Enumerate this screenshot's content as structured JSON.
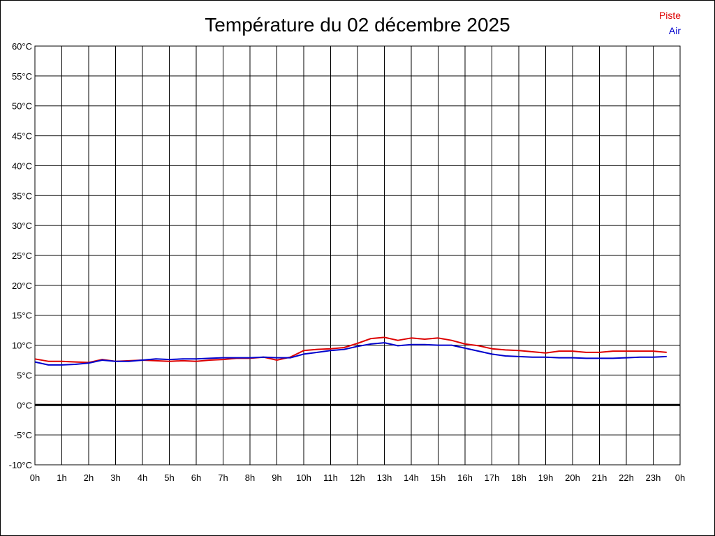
{
  "chart_data": {
    "type": "line",
    "title": "Température du 02 décembre 2025",
    "ylim": [
      -10,
      60
    ],
    "xlim": [
      0,
      24
    ],
    "y_ticks": [
      60,
      55,
      50,
      45,
      40,
      35,
      30,
      25,
      20,
      15,
      10,
      5,
      0,
      -5,
      -10
    ],
    "y_tick_labels": [
      "60°C",
      "55°C",
      "50°C",
      "45°C",
      "40°C",
      "35°C",
      "30°C",
      "25°C",
      "20°C",
      "15°C",
      "10°C",
      "5°C",
      "0°C",
      "-5°C",
      "-10°C"
    ],
    "x_ticks": [
      0,
      1,
      2,
      3,
      4,
      5,
      6,
      7,
      8,
      9,
      10,
      11,
      12,
      13,
      14,
      15,
      16,
      17,
      18,
      19,
      20,
      21,
      22,
      23,
      24
    ],
    "x_tick_labels": [
      "0h",
      "1h",
      "2h",
      "3h",
      "4h",
      "5h",
      "6h",
      "7h",
      "8h",
      "9h",
      "10h",
      "11h",
      "12h",
      "13h",
      "14h",
      "15h",
      "16h",
      "17h",
      "18h",
      "19h",
      "20h",
      "21h",
      "22h",
      "23h",
      "0h"
    ],
    "grid": true,
    "legend_position": "top-right",
    "series": [
      {
        "name": "Piste",
        "color": "#dd0000",
        "x": [
          0,
          0.5,
          1,
          1.5,
          2,
          2.5,
          3,
          3.5,
          4,
          4.5,
          5,
          5.5,
          6,
          6.5,
          7,
          7.5,
          8,
          8.5,
          9,
          9.5,
          10,
          10.5,
          11,
          11.5,
          12,
          12.5,
          13,
          13.5,
          14,
          14.5,
          15,
          15.5,
          16,
          16.5,
          17,
          17.5,
          18,
          18.5,
          19,
          19.5,
          20,
          20.5,
          21,
          21.5,
          22,
          22.5,
          23,
          23.5
        ],
        "values": [
          7.7,
          7.3,
          7.3,
          7.2,
          7.1,
          7.6,
          7.3,
          7.4,
          7.5,
          7.4,
          7.3,
          7.4,
          7.3,
          7.5,
          7.6,
          7.8,
          7.8,
          8.0,
          7.5,
          8.0,
          9.1,
          9.3,
          9.4,
          9.6,
          10.3,
          11.1,
          11.3,
          10.8,
          11.2,
          11.0,
          11.2,
          10.8,
          10.2,
          9.9,
          9.4,
          9.2,
          9.1,
          8.9,
          8.7,
          9.0,
          9.0,
          8.8,
          8.8,
          9.0,
          9.0,
          9.0,
          9.0,
          8.8
        ]
      },
      {
        "name": "Air",
        "color": "#0000cc",
        "x": [
          0,
          0.5,
          1,
          1.5,
          2,
          2.5,
          3,
          3.5,
          4,
          4.5,
          5,
          5.5,
          6,
          6.5,
          7,
          7.5,
          8,
          8.5,
          9,
          9.5,
          10,
          10.5,
          11,
          11.5,
          12,
          12.5,
          13,
          13.5,
          14,
          14.5,
          15,
          15.5,
          16,
          16.5,
          17,
          17.5,
          18,
          18.5,
          19,
          19.5,
          20,
          20.5,
          21,
          21.5,
          22,
          22.5,
          23,
          23.5
        ],
        "values": [
          7.2,
          6.7,
          6.7,
          6.8,
          7.0,
          7.5,
          7.3,
          7.3,
          7.5,
          7.7,
          7.6,
          7.7,
          7.7,
          7.8,
          7.9,
          7.9,
          7.9,
          8.0,
          7.9,
          7.9,
          8.5,
          8.8,
          9.1,
          9.3,
          9.8,
          10.2,
          10.4,
          9.9,
          10.1,
          10.1,
          10.0,
          10.0,
          9.5,
          9.0,
          8.5,
          8.2,
          8.1,
          8.0,
          8.0,
          7.9,
          7.9,
          7.8,
          7.8,
          7.8,
          7.9,
          8.0,
          8.0,
          8.1
        ]
      }
    ]
  }
}
